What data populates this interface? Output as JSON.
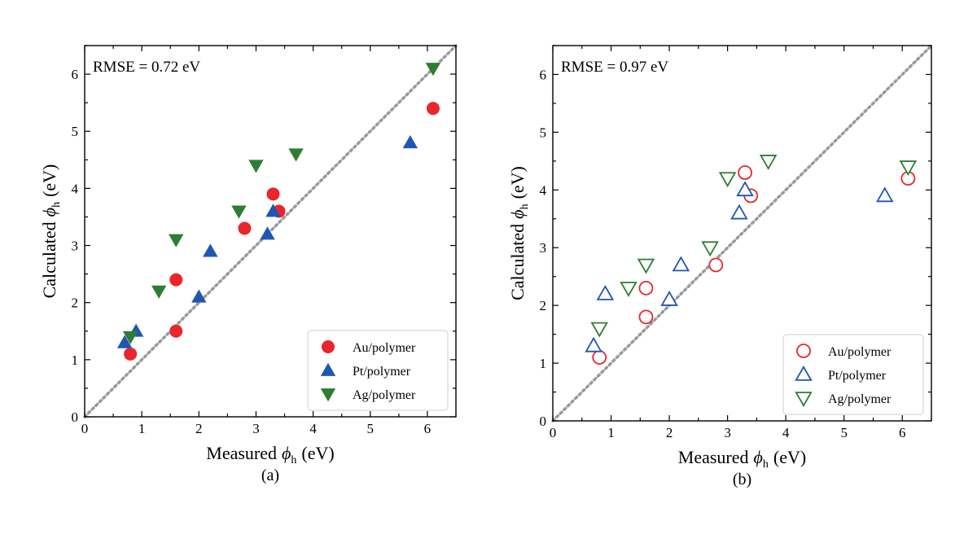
{
  "colors": {
    "au": "#e8262b",
    "pt": "#1f56b0",
    "ag": "#2e7d32",
    "diagonal": "#9a9a9a",
    "axes": "#000000"
  },
  "chart_data": [
    {
      "type": "scatter",
      "panel_label": "(a)",
      "annotation": "RMSE = 0.72 eV",
      "xlabel_main": "Measured",
      "xlabel_symbol": "ϕ",
      "xlabel_sub": "h",
      "xlabel_unit": "(eV)",
      "ylabel_main": "Calculated",
      "ylabel_symbol": "ϕ",
      "ylabel_sub": "h",
      "ylabel_unit": "(eV)",
      "xlim": [
        0,
        6.5
      ],
      "ylim": [
        0,
        6.5
      ],
      "xticks": [
        "0",
        "1",
        "2",
        "3",
        "4",
        "5",
        "6"
      ],
      "yticks": [
        "0",
        "1",
        "2",
        "3",
        "4",
        "5",
        "6"
      ],
      "marker_fill": "filled",
      "legend_position": "lower-right",
      "reference_line": "y = x (dotted)",
      "series": [
        {
          "name": "Au/polymer",
          "marker": "circle",
          "points": [
            [
              0.8,
              1.1
            ],
            [
              1.6,
              1.5
            ],
            [
              1.6,
              2.4
            ],
            [
              2.8,
              3.3
            ],
            [
              3.3,
              3.9
            ],
            [
              3.4,
              3.6
            ],
            [
              6.1,
              5.4
            ]
          ]
        },
        {
          "name": "Pt/polymer",
          "marker": "triangle-up",
          "points": [
            [
              0.7,
              1.3
            ],
            [
              0.9,
              1.5
            ],
            [
              2.0,
              2.1
            ],
            [
              2.2,
              2.9
            ],
            [
              3.2,
              3.2
            ],
            [
              3.3,
              3.6
            ],
            [
              5.7,
              4.8
            ]
          ]
        },
        {
          "name": "Ag/polymer",
          "marker": "triangle-down",
          "points": [
            [
              0.8,
              1.4
            ],
            [
              1.3,
              2.2
            ],
            [
              1.6,
              3.1
            ],
            [
              2.7,
              3.6
            ],
            [
              3.0,
              4.4
            ],
            [
              3.7,
              4.6
            ],
            [
              6.1,
              6.1
            ]
          ]
        }
      ]
    },
    {
      "type": "scatter",
      "panel_label": "(b)",
      "annotation": "RMSE = 0.97 eV",
      "xlabel_main": "Measured",
      "xlabel_symbol": "ϕ",
      "xlabel_sub": "h",
      "xlabel_unit": "(eV)",
      "ylabel_main": "Calculated",
      "ylabel_symbol": "ϕ",
      "ylabel_sub": "h",
      "ylabel_unit": "(eV)",
      "xlim": [
        0,
        6.5
      ],
      "ylim": [
        0,
        6.5
      ],
      "xticks": [
        "0",
        "1",
        "2",
        "3",
        "4",
        "5",
        "6"
      ],
      "yticks": [
        "0",
        "1",
        "2",
        "3",
        "4",
        "5",
        "6"
      ],
      "marker_fill": "open",
      "legend_position": "lower-right",
      "reference_line": "y = x (dotted)",
      "series": [
        {
          "name": "Au/polymer",
          "marker": "circle",
          "points": [
            [
              0.8,
              1.1
            ],
            [
              1.6,
              1.8
            ],
            [
              1.6,
              2.3
            ],
            [
              2.8,
              2.7
            ],
            [
              3.3,
              4.3
            ],
            [
              3.4,
              3.9
            ],
            [
              6.1,
              4.2
            ]
          ]
        },
        {
          "name": "Pt/polymer",
          "marker": "triangle-up",
          "points": [
            [
              0.7,
              1.3
            ],
            [
              0.9,
              2.2
            ],
            [
              2.0,
              2.1
            ],
            [
              2.2,
              2.7
            ],
            [
              3.2,
              3.6
            ],
            [
              3.3,
              4.0
            ],
            [
              5.7,
              3.9
            ]
          ]
        },
        {
          "name": "Ag/polymer",
          "marker": "triangle-down",
          "points": [
            [
              0.8,
              1.6
            ],
            [
              1.3,
              2.3
            ],
            [
              1.6,
              2.7
            ],
            [
              2.7,
              3.0
            ],
            [
              3.0,
              4.2
            ],
            [
              3.7,
              4.5
            ],
            [
              6.1,
              4.4
            ]
          ]
        }
      ]
    }
  ]
}
